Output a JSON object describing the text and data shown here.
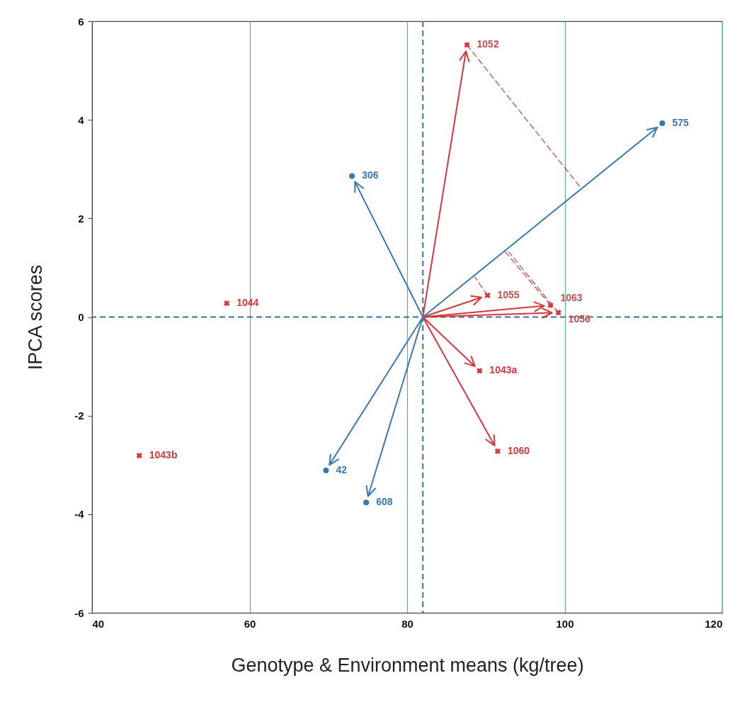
{
  "chart_data": {
    "type": "scatter",
    "xlabel": "Genotype & Environment means (kg/tree)",
    "ylabel": "IPCA scores",
    "xlim": [
      40,
      120
    ],
    "xticks": [
      40,
      60,
      80,
      100,
      120
    ],
    "ylim": [
      -6,
      6
    ],
    "yticks": [
      -6,
      -4,
      -2,
      0,
      2,
      4,
      6
    ],
    "grid": "x",
    "ref_lines": [
      {
        "axis": "x",
        "value": 82,
        "color": "#3d6f9f",
        "line_style": "dashed"
      },
      {
        "axis": "y",
        "value": 0,
        "color": "#3d6f9f",
        "line_style": "dashed"
      }
    ],
    "series": [
      {
        "marker": "cross",
        "line_style": "solid",
        "color": "#d9363b",
        "x": [
          87.6,
          90.2,
          98.2,
          99.2,
          89.2,
          91.5
        ],
        "values": [
          5.52,
          0.44,
          0.24,
          0.09,
          -1.09,
          -2.72
        ]
      },
      {
        "marker": "cross",
        "color": "#d9363b",
        "x": [
          57.1,
          46.0
        ],
        "values": [
          0.28,
          -2.81
        ]
      },
      {
        "marker": "circle",
        "line_style": "solid",
        "color": "#3a78b5",
        "x": [
          112.4,
          73.0,
          69.7,
          74.8
        ],
        "values": [
          3.93,
          2.86,
          -3.11,
          -3.76
        ]
      },
      {
        "type": "line",
        "line_style": "dashed",
        "color": "#c0504d",
        "x": [
          87.6,
          101.9
        ],
        "values": [
          5.52,
          2.65
        ]
      },
      {
        "type": "line",
        "line_style": "dashed",
        "color": "#c0504d",
        "x": [
          90.2,
          88.6
        ],
        "values": [
          0.44,
          0.81
        ]
      },
      {
        "type": "line",
        "line_style": "dashed",
        "color": "#c0504d",
        "x": [
          98.2,
          92.2
        ],
        "values": [
          0.24,
          1.37
        ]
      },
      {
        "type": "line",
        "line_style": "dashed",
        "color": "#c0504d",
        "x": [
          99.2,
          92.9
        ],
        "values": [
          0.09,
          1.32
        ]
      }
    ],
    "annotations": [
      {
        "text": "1052",
        "x": 87.6,
        "y": 5.52
      },
      {
        "text": "1055",
        "x": 90.2,
        "y": 0.44
      },
      {
        "text": "1063",
        "x": 98.2,
        "y": 0.24
      },
      {
        "text": "1056",
        "x": 99.2,
        "y": 0.09
      },
      {
        "text": "1043a",
        "x": 89.2,
        "y": -1.09
      },
      {
        "text": "1060",
        "x": 91.5,
        "y": -2.72
      },
      {
        "text": "1044",
        "x": 57.1,
        "y": 0.28
      },
      {
        "text": "1043b",
        "x": 46.0,
        "y": -2.81
      },
      {
        "text": "575",
        "x": 112.4,
        "y": 3.93
      },
      {
        "text": "306",
        "x": 73.0,
        "y": 2.86
      },
      {
        "text": "42",
        "x": 69.7,
        "y": -3.11
      },
      {
        "text": "608",
        "x": 74.8,
        "y": -3.76
      }
    ]
  }
}
